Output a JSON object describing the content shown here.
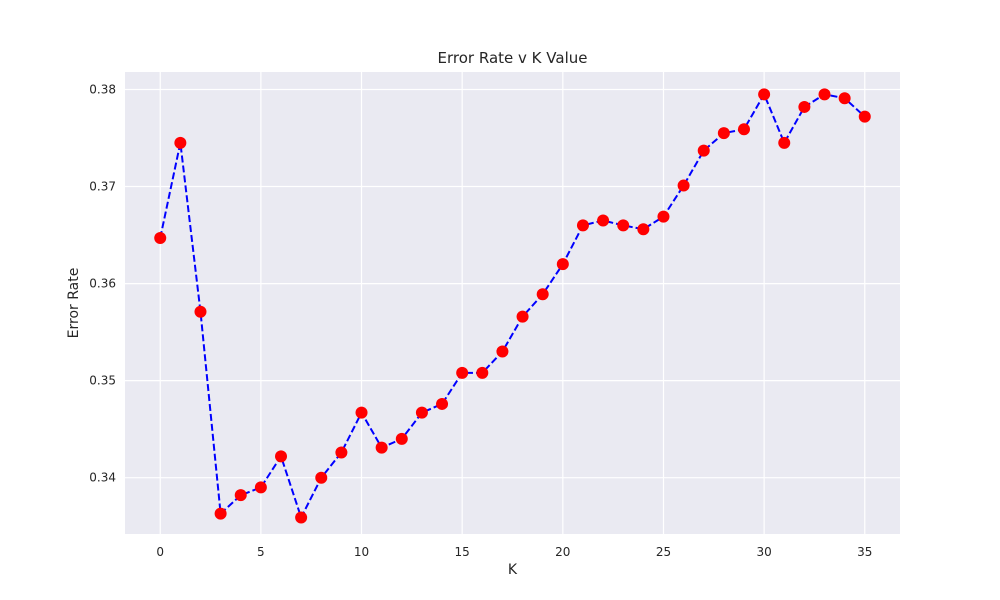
{
  "chart_data": {
    "type": "line",
    "title": "Error Rate v K Value",
    "xlabel": "K",
    "ylabel": "Error Rate",
    "xlim": [
      -1.75,
      36.75
    ],
    "ylim": [
      0.3342,
      0.3818
    ],
    "xticks": [
      0,
      5,
      10,
      15,
      20,
      25,
      30,
      35
    ],
    "yticks": [
      0.34,
      0.35,
      0.36,
      0.37,
      0.38
    ],
    "ytick_labels": [
      "0.34",
      "0.35",
      "0.36",
      "0.37",
      "0.38"
    ],
    "grid": true,
    "x": [
      0,
      1,
      2,
      3,
      4,
      5,
      6,
      7,
      8,
      9,
      10,
      11,
      12,
      13,
      14,
      15,
      16,
      17,
      18,
      19,
      20,
      21,
      22,
      23,
      24,
      25,
      26,
      27,
      28,
      29,
      30,
      31,
      32,
      33,
      34,
      35
    ],
    "series": [
      {
        "values": [
          0.3647,
          0.3745,
          0.3571,
          0.3363,
          0.3382,
          0.339,
          0.3422,
          0.3359,
          0.34,
          0.3426,
          0.3467,
          0.3431,
          0.344,
          0.3467,
          0.3476,
          0.3508,
          0.3508,
          0.353,
          0.3566,
          0.3589,
          0.362,
          0.366,
          0.3665,
          0.366,
          0.3656,
          0.3669,
          0.3701,
          0.3737,
          0.3755,
          0.3759,
          0.3795,
          0.3745,
          0.3782,
          0.3795,
          0.3791,
          0.3772
        ],
        "line_color": "#0000ff",
        "line_style": "dashed",
        "marker": "circle",
        "marker_color": "#ff0000"
      }
    ],
    "colors": {
      "background": "#eaeaf2",
      "grid": "#ffffff",
      "text": "#262626"
    }
  }
}
